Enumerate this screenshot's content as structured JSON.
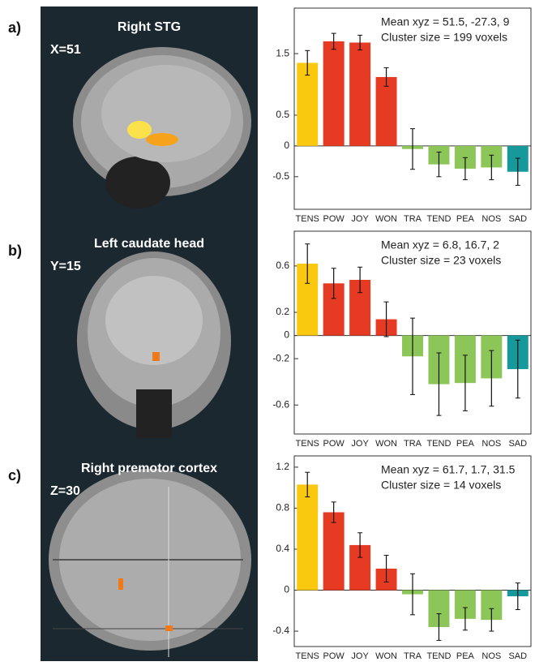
{
  "panels": [
    {
      "label": "a)",
      "image_title": "Right STG",
      "slice": "X=51"
    },
    {
      "label": "b)",
      "image_title": "Left caudate head",
      "slice": "Y=15"
    },
    {
      "label": "c)",
      "image_title": "Right premotor cortex",
      "slice": "Z=30"
    }
  ],
  "chart_data": [
    {
      "type": "bar",
      "categories": [
        "TENS",
        "POW",
        "JOY",
        "WON",
        "TRA",
        "TEND",
        "PEA",
        "NOS",
        "SAD"
      ],
      "values": [
        1.35,
        1.7,
        1.68,
        1.12,
        -0.05,
        -0.3,
        -0.37,
        -0.35,
        -0.42
      ],
      "errors": [
        0.2,
        0.13,
        0.12,
        0.15,
        0.33,
        0.2,
        0.18,
        0.2,
        0.22
      ],
      "colors": [
        "#fac80f",
        "#e63a22",
        "#e63a22",
        "#e63a22",
        "#8dc658",
        "#8dc658",
        "#8dc658",
        "#8dc658",
        "#17999c"
      ],
      "annotations": [
        "Mean xyz = 51.5, -27.3,  9",
        "Cluster size = 199 voxels"
      ],
      "ylim": [
        -1.03,
        2.24
      ],
      "yticks": [
        -0.5,
        0,
        0.5,
        1.5
      ]
    },
    {
      "type": "bar",
      "categories": [
        "TENS",
        "POW",
        "JOY",
        "WON",
        "TRA",
        "TEND",
        "PEA",
        "NOS",
        "SAD"
      ],
      "values": [
        0.62,
        0.45,
        0.48,
        0.14,
        -0.18,
        -0.42,
        -0.41,
        -0.37,
        -0.29
      ],
      "errors": [
        0.17,
        0.13,
        0.11,
        0.15,
        0.33,
        0.27,
        0.24,
        0.24,
        0.25
      ],
      "colors": [
        "#fac80f",
        "#e63a22",
        "#e63a22",
        "#e63a22",
        "#8dc658",
        "#8dc658",
        "#8dc658",
        "#8dc658",
        "#17999c"
      ],
      "annotations": [
        "Mean xyz = 6.8, 16.7, 2",
        "Cluster size = 23 voxels"
      ],
      "ylim": [
        -0.85,
        0.9
      ],
      "yticks": [
        -0.6,
        -0.2,
        0,
        0.2,
        0.6
      ]
    },
    {
      "type": "bar",
      "categories": [
        "TENS",
        "POW",
        "JOY",
        "WON",
        "TRA",
        "TEND",
        "PEA",
        "NOS",
        "SAD"
      ],
      "values": [
        1.03,
        0.76,
        0.44,
        0.21,
        -0.04,
        -0.36,
        -0.28,
        -0.29,
        -0.06
      ],
      "errors": [
        0.12,
        0.1,
        0.12,
        0.13,
        0.2,
        0.13,
        0.11,
        0.11,
        0.13
      ],
      "colors": [
        "#fac80f",
        "#e63a22",
        "#e63a22",
        "#e63a22",
        "#8dc658",
        "#8dc658",
        "#8dc658",
        "#8dc658",
        "#17999c"
      ],
      "annotations": [
        "Mean xyz = 61.7, 1.7, 31.5",
        "Cluster size = 14 voxels"
      ],
      "ylim": [
        -0.55,
        1.31
      ],
      "yticks": [
        -0.4,
        0,
        0.4,
        0.8,
        1.2
      ]
    }
  ]
}
